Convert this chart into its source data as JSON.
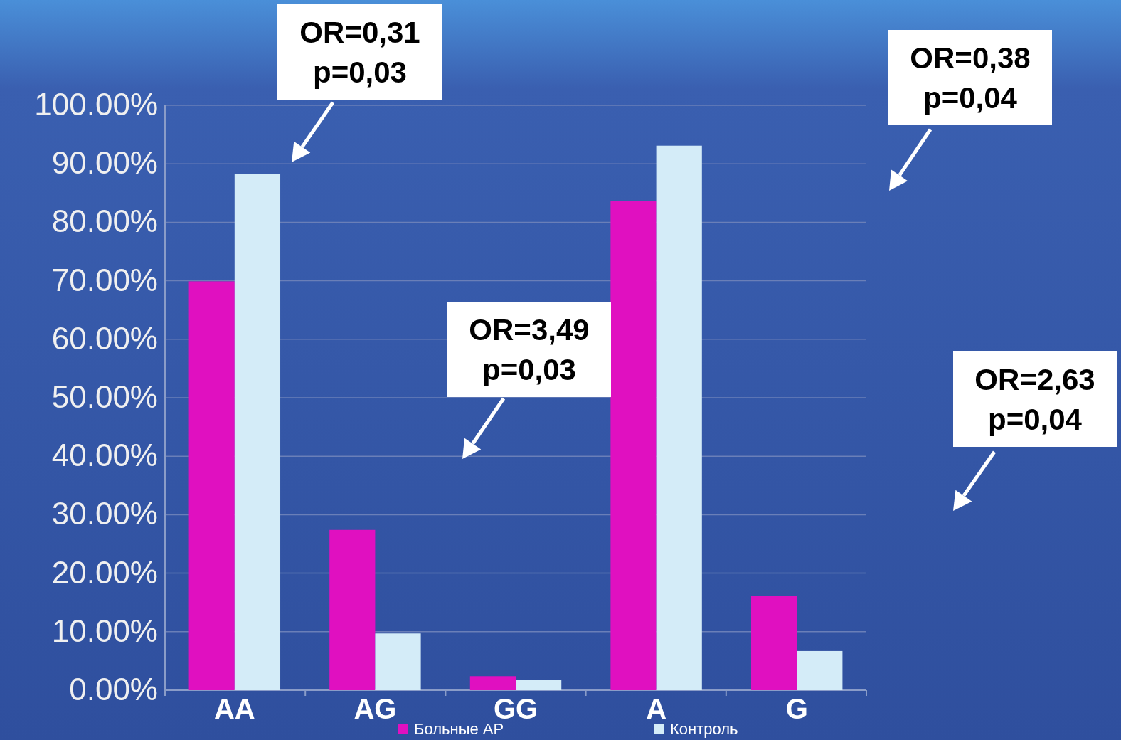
{
  "chart_data": {
    "type": "bar",
    "categories": [
      "AA",
      "AG",
      "GG",
      "A",
      "G"
    ],
    "series": [
      {
        "name": "Больные АР",
        "color": "#e010c0",
        "values": [
          69.9,
          27.4,
          2.4,
          83.6,
          16.1
        ]
      },
      {
        "name": "Контроль",
        "color": "#d4ecf8",
        "values": [
          88.2,
          9.7,
          1.8,
          93.1,
          6.7
        ]
      }
    ],
    "ylim": [
      0,
      100
    ],
    "yticks": [
      {
        "value": 0,
        "label": "0.00%"
      },
      {
        "value": 10,
        "label": "10.00%"
      },
      {
        "value": 20,
        "label": "20.00%"
      },
      {
        "value": 30,
        "label": "30.00%"
      },
      {
        "value": 40,
        "label": "40.00%"
      },
      {
        "value": 50,
        "label": "50.00%"
      },
      {
        "value": 60,
        "label": "60.00%"
      },
      {
        "value": 70,
        "label": "70.00%"
      },
      {
        "value": 80,
        "label": "80.00%"
      },
      {
        "value": 90,
        "label": "90.00%"
      },
      {
        "value": 100,
        "label": "100.00%"
      }
    ],
    "grid": "y",
    "legend": "bottom",
    "annotations": [
      "OR=0,31\np=0,03",
      "OR=0,38\np=0,04",
      "OR=3,49\np=0,03",
      "OR=2,63\np=0,04"
    ]
  }
}
